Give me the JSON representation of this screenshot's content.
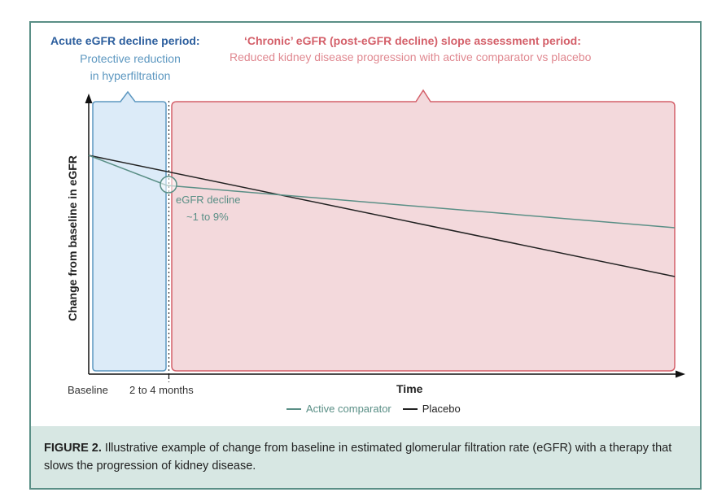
{
  "header": {
    "acute_title": "Acute eGFR decline period:",
    "acute_sub_1": "Protective reduction",
    "acute_sub_2": "in hyperfiltration",
    "chronic_title": "‘Chronic’ eGFR (post-eGFR decline) slope assessment period:",
    "chronic_sub": "Reduced kidney disease progression with active comparator vs placebo"
  },
  "axes": {
    "ylabel": "Change from baseline in eGFR",
    "xlabel": "Time",
    "tick_baseline": "Baseline",
    "tick_months": "2 to 4 months"
  },
  "annotation": {
    "line1": "eGFR decline",
    "line2": "~1 to 9%"
  },
  "legend": {
    "active": "Active comparator",
    "placebo": "Placebo"
  },
  "caption": {
    "label": "FIGURE 2.",
    "text": " Illustrative example of change from baseline in estimated glomerular filtration rate (eGFR) with a therapy that slows the progression of kidney disease."
  },
  "colors": {
    "frame": "#5a8f86",
    "acute_fill": "#dcebf8",
    "acute_stroke": "#5c97c0",
    "chronic_fill": "#f3d9dc",
    "chronic_stroke": "#d4606a",
    "active_line": "#5a8f86",
    "placebo_line": "#222222",
    "caption_bg": "#d7e7e3"
  }
}
